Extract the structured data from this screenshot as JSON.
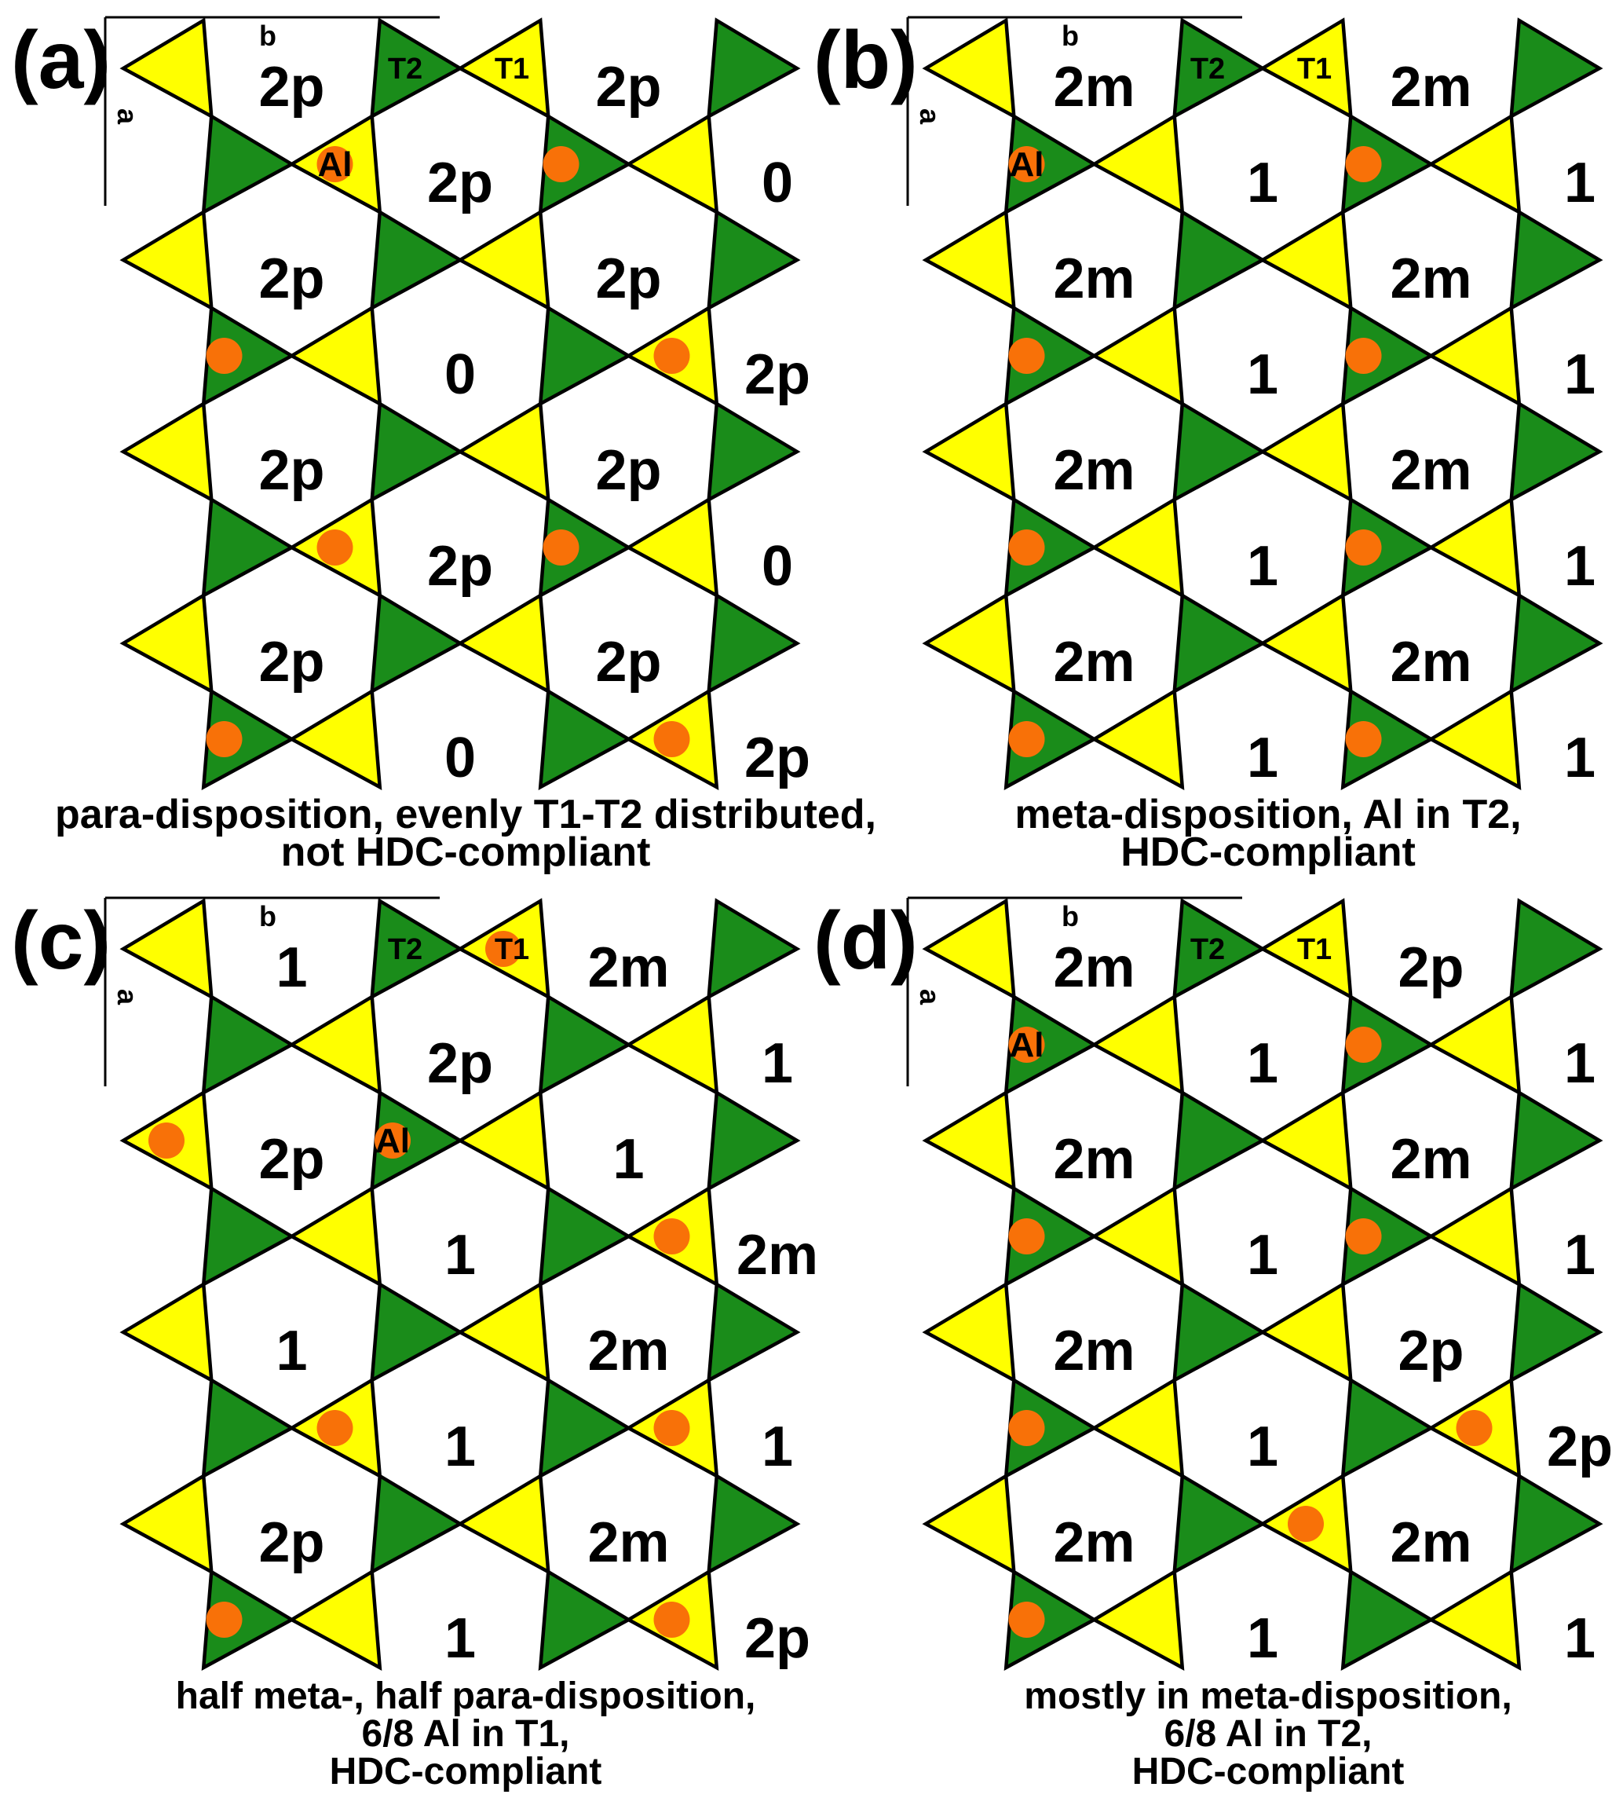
{
  "figure": {
    "background": "#ffffff",
    "outline_color": "#000000",
    "text_color": "#000000",
    "sites": {
      "t1": {
        "label": "T1",
        "color": "#ffff00"
      },
      "t2": {
        "label": "T2",
        "color": "#1a8c1a"
      },
      "al": {
        "label": "Al",
        "color": "#f87108"
      }
    },
    "axes": {
      "a_label": "a",
      "b_label": "b"
    }
  },
  "panels": [
    {
      "letter": "(a)",
      "caption_lines": [
        "para-disposition, evenly T1-T2 distributed,",
        "not HDC-compliant"
      ],
      "cell_labels": [
        [
          "2p",
          "2p"
        ],
        [
          "2p",
          "0"
        ],
        [
          "2p",
          "2p"
        ],
        [
          "0",
          "2p"
        ],
        [
          "2p",
          "2p"
        ],
        [
          "2p",
          "0"
        ],
        [
          "2p",
          "2p"
        ],
        [
          "0",
          "2p"
        ]
      ],
      "al_sites": [
        {
          "row": 1,
          "pinch": 1,
          "site": "t1",
          "label": "Al"
        },
        {
          "row": 1,
          "pinch": 3,
          "site": "t2"
        },
        {
          "row": 3,
          "pinch": 1,
          "site": "t2"
        },
        {
          "row": 3,
          "pinch": 3,
          "site": "t1"
        },
        {
          "row": 5,
          "pinch": 1,
          "site": "t1"
        },
        {
          "row": 5,
          "pinch": 3,
          "site": "t2"
        },
        {
          "row": 7,
          "pinch": 1,
          "site": "t2"
        },
        {
          "row": 7,
          "pinch": 3,
          "site": "t1"
        }
      ]
    },
    {
      "letter": "(b)",
      "caption_lines": [
        "meta-disposition, Al in T2,",
        "HDC-compliant"
      ],
      "cell_labels": [
        [
          "2m",
          "2m"
        ],
        [
          "1",
          "1"
        ],
        [
          "2m",
          "2m"
        ],
        [
          "1",
          "1"
        ],
        [
          "2m",
          "2m"
        ],
        [
          "1",
          "1"
        ],
        [
          "2m",
          "2m"
        ],
        [
          "1",
          "1"
        ]
      ],
      "al_sites": [
        {
          "row": 1,
          "pinch": 1,
          "site": "t2",
          "label": "Al"
        },
        {
          "row": 1,
          "pinch": 3,
          "site": "t2"
        },
        {
          "row": 3,
          "pinch": 1,
          "site": "t2"
        },
        {
          "row": 3,
          "pinch": 3,
          "site": "t2"
        },
        {
          "row": 5,
          "pinch": 1,
          "site": "t2"
        },
        {
          "row": 5,
          "pinch": 3,
          "site": "t2"
        },
        {
          "row": 7,
          "pinch": 1,
          "site": "t2"
        },
        {
          "row": 7,
          "pinch": 3,
          "site": "t2"
        }
      ]
    },
    {
      "letter": "(c)",
      "caption_lines": [
        "half meta-, half para-disposition,",
        "6/8 Al in T1,",
        "HDC-compliant"
      ],
      "cell_labels": [
        [
          "1",
          "2m"
        ],
        [
          "2p",
          "1"
        ],
        [
          "2p",
          "1"
        ],
        [
          "1",
          "2m"
        ],
        [
          "1",
          "2m"
        ],
        [
          "1",
          "1"
        ],
        [
          "2p",
          "2m"
        ],
        [
          "1",
          "2p"
        ]
      ],
      "al_sites": [
        {
          "row": 0,
          "pinch": 2,
          "site": "t1"
        },
        {
          "row": 2,
          "pinch": 0,
          "site": "t1"
        },
        {
          "row": 2,
          "pinch": 2,
          "site": "t2",
          "label": "Al"
        },
        {
          "row": 3,
          "pinch": 3,
          "site": "t1"
        },
        {
          "row": 5,
          "pinch": 1,
          "site": "t1"
        },
        {
          "row": 5,
          "pinch": 3,
          "site": "t1"
        },
        {
          "row": 7,
          "pinch": 1,
          "site": "t2"
        },
        {
          "row": 7,
          "pinch": 3,
          "site": "t1"
        }
      ]
    },
    {
      "letter": "(d)",
      "caption_lines": [
        "mostly in meta-disposition,",
        "6/8 Al in T2,",
        "HDC-compliant"
      ],
      "cell_labels": [
        [
          "2m",
          "2p"
        ],
        [
          "1",
          "1"
        ],
        [
          "2m",
          "2m"
        ],
        [
          "1",
          "1"
        ],
        [
          "2m",
          "2p"
        ],
        [
          "1",
          "2p"
        ],
        [
          "2m",
          "2m"
        ],
        [
          "1",
          "1"
        ]
      ],
      "al_sites": [
        {
          "row": 1,
          "pinch": 1,
          "site": "t2",
          "label": "Al"
        },
        {
          "row": 1,
          "pinch": 3,
          "site": "t2"
        },
        {
          "row": 3,
          "pinch": 1,
          "site": "t2"
        },
        {
          "row": 3,
          "pinch": 3,
          "site": "t2"
        },
        {
          "row": 5,
          "pinch": 1,
          "site": "t2"
        },
        {
          "row": 5,
          "pinch": 3,
          "site": "t1"
        },
        {
          "row": 6,
          "pinch": 2,
          "site": "t1"
        },
        {
          "row": 7,
          "pinch": 1,
          "site": "t2"
        }
      ]
    }
  ]
}
